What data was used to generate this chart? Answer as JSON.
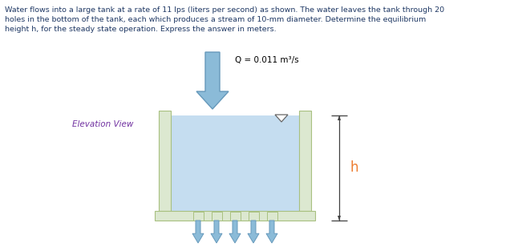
{
  "bg_color": "#ffffff",
  "title_lines": [
    "Water flows into a large tank at a rate of 11 lps (liters per second) as shown. The water leaves the tank through 20",
    "holes in the bottom of the tank, each which produces a stream of 10-mm diameter. Determine the equilibrium",
    "height h, for the steady state operation. Express the answer in meters."
  ],
  "title_color": "#1f3864",
  "Q_label": "Q = 0.011 m³/s",
  "Q_label_color": "#000000",
  "elevation_label": "Elevation View",
  "elevation_color": "#7030a0",
  "h_label": "h",
  "h_label_color": "#ed7d31",
  "tank_wall_color": "#dce8d0",
  "tank_wall_edge": "#a8c080",
  "water_color": "#c5ddf0",
  "arrow_in_color": "#8bbbd8",
  "arrow_in_edge": "#6699bb",
  "arrow_out_color": "#8bbbd8",
  "arrow_out_edge": "#6699bb",
  "hole_color": "#dce8d0",
  "hole_edge": "#a8c080",
  "tri_fill": "#ffffff",
  "tri_edge": "#666666",
  "dim_color": "#404040"
}
